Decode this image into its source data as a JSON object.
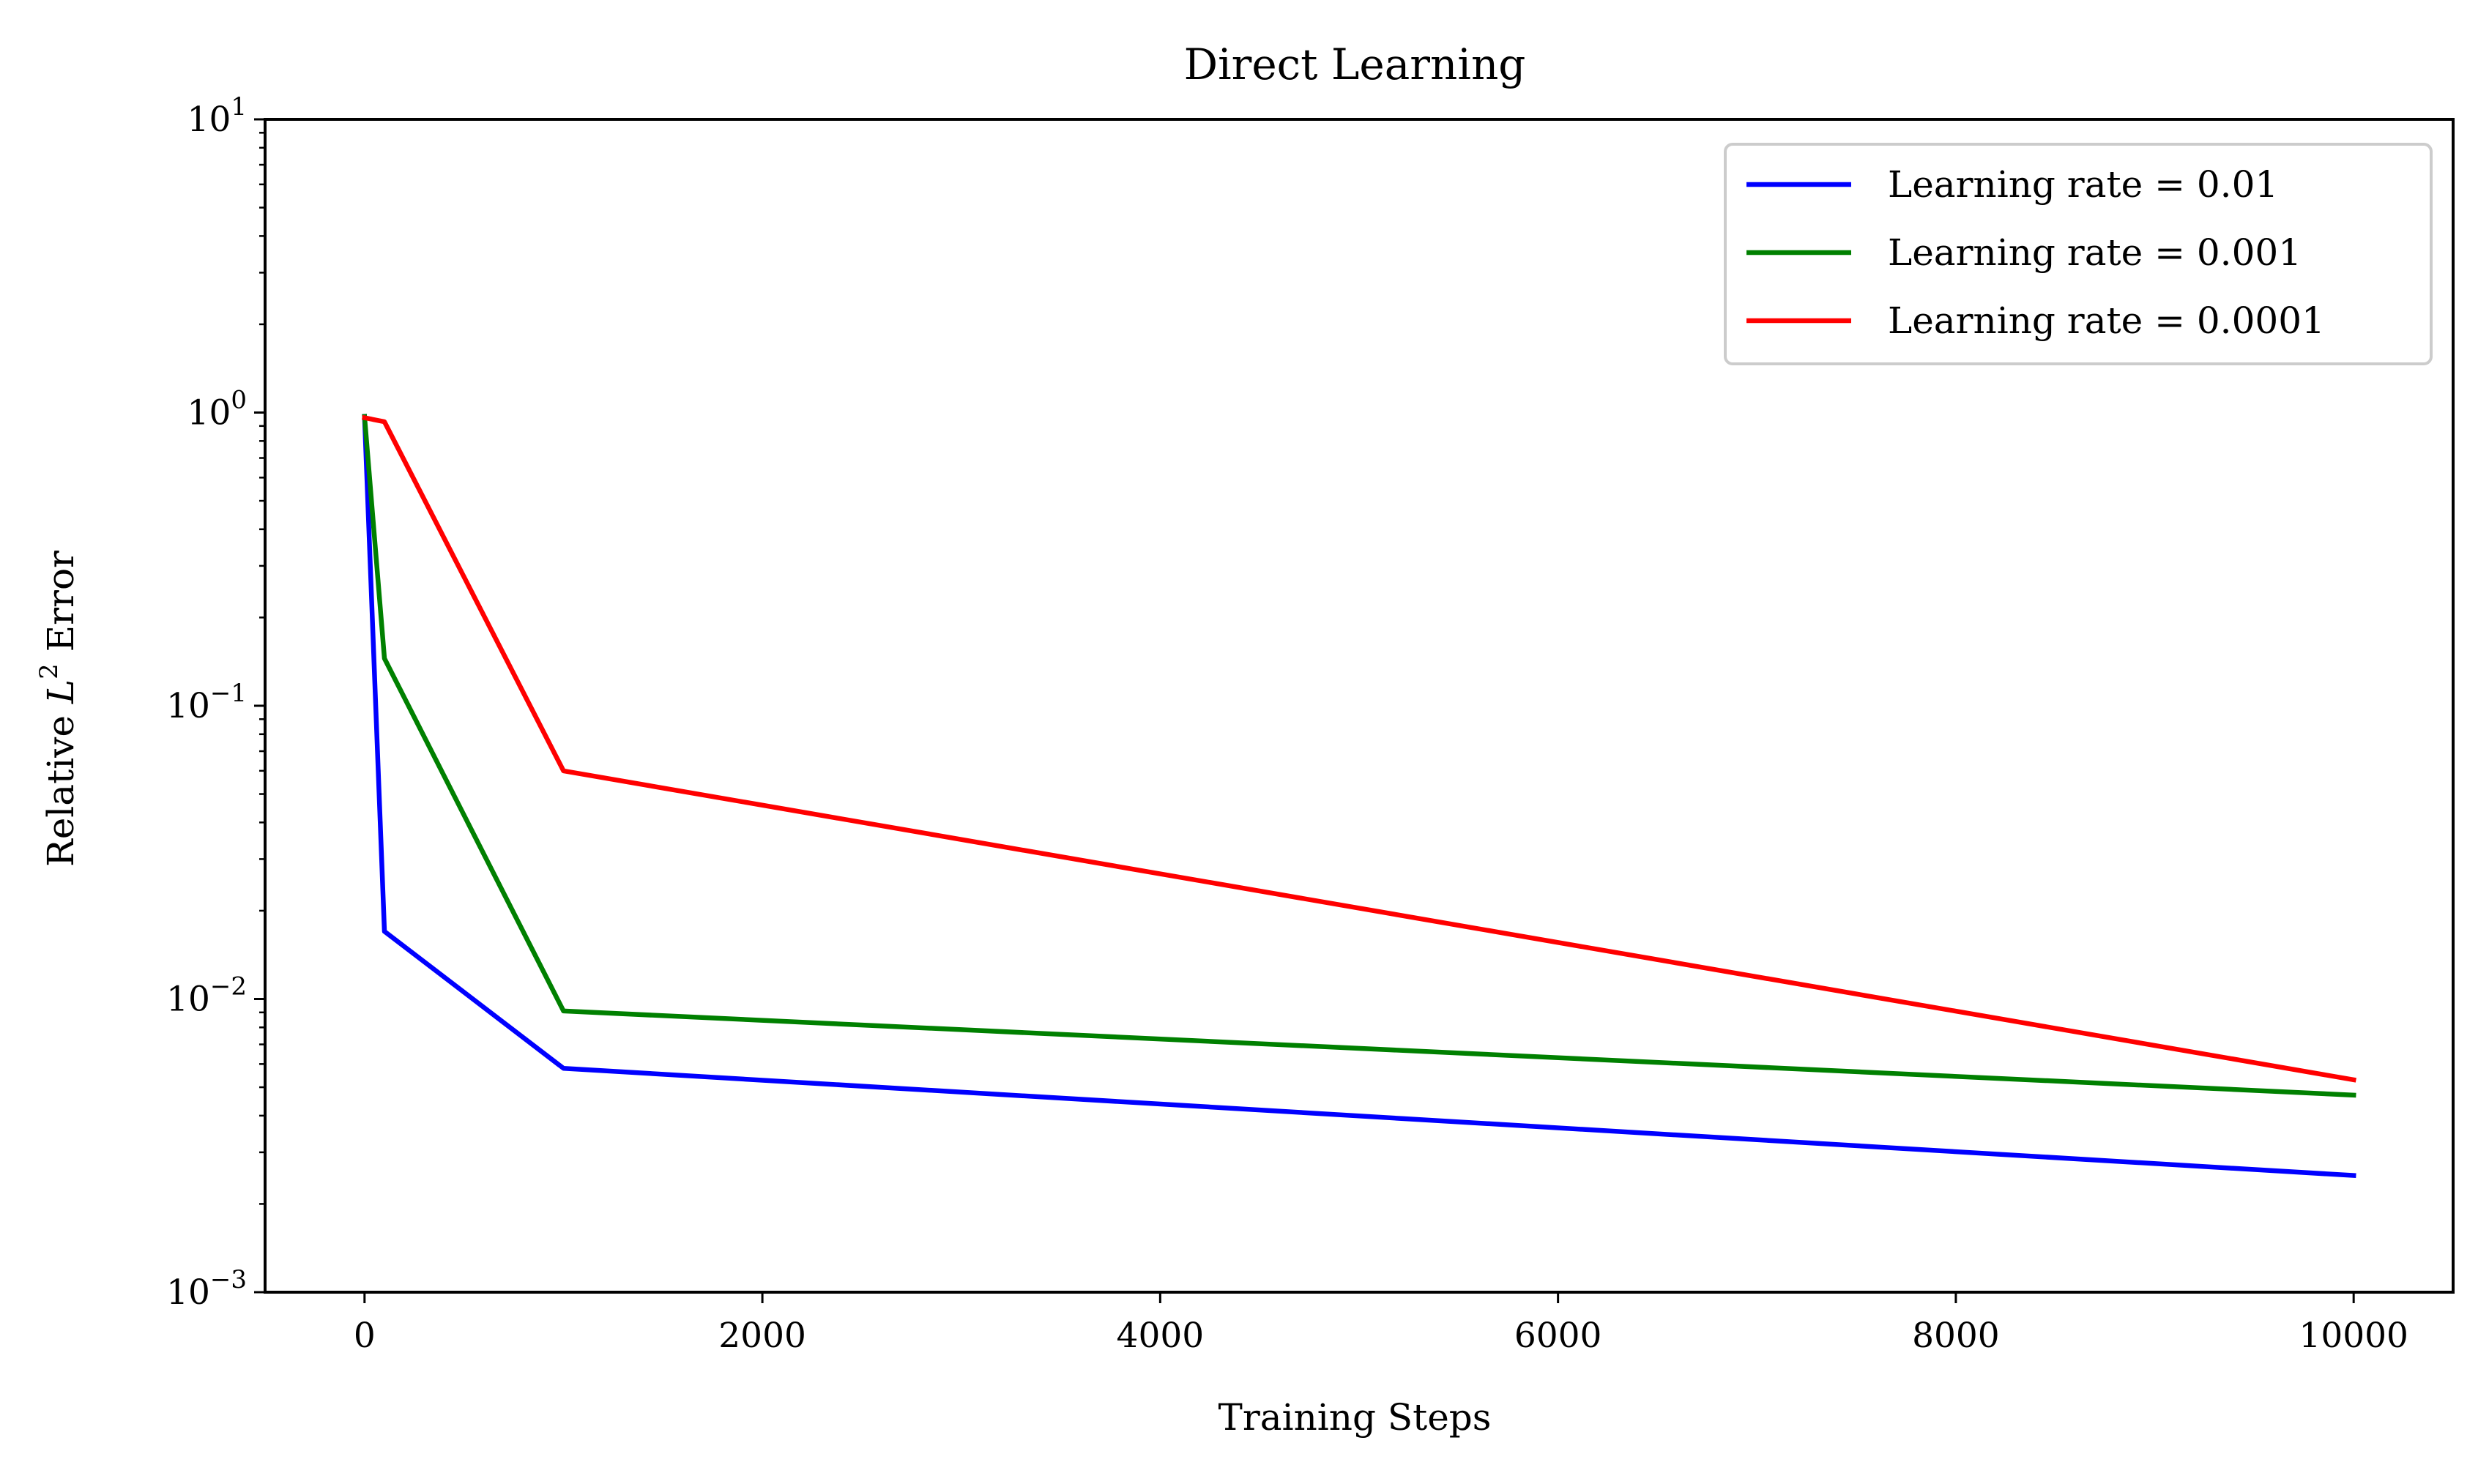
{
  "chart_data": {
    "type": "line",
    "title": "Direct Learning",
    "xlabel": "Training Steps",
    "ylabel": {
      "prefix": "Relative ",
      "symbol": "L",
      "power": "2",
      "suffix": " Error"
    },
    "y_scale": "log",
    "xlim": [
      -500,
      10500
    ],
    "ylim": [
      0.001,
      10
    ],
    "x_ticks": [
      0,
      2000,
      4000,
      6000,
      8000,
      10000
    ],
    "x_tick_labels": [
      "0",
      "2000",
      "4000",
      "6000",
      "8000",
      "10000"
    ],
    "y_ticks": [
      {
        "value": 0.001,
        "base": "10",
        "exp": "−3"
      },
      {
        "value": 0.01,
        "base": "10",
        "exp": "−2"
      },
      {
        "value": 0.1,
        "base": "10",
        "exp": "−1"
      },
      {
        "value": 1,
        "base": "10",
        "exp": "0"
      },
      {
        "value": 10,
        "base": "10",
        "exp": "1"
      }
    ],
    "grid": false,
    "legend_position": "top-right",
    "x": [
      0,
      100,
      1000,
      10000
    ],
    "series": [
      {
        "name": "Learning rate = 0.01",
        "color": "#0000ff",
        "values": [
          0.97,
          0.017,
          0.0058,
          0.0025
        ]
      },
      {
        "name": "Learning rate = 0.001",
        "color": "#008000",
        "values": [
          0.97,
          0.145,
          0.0091,
          0.0047
        ]
      },
      {
        "name": "Learning rate = 0.0001",
        "color": "#ff0000",
        "values": [
          0.96,
          0.93,
          0.06,
          0.0053
        ]
      }
    ]
  }
}
